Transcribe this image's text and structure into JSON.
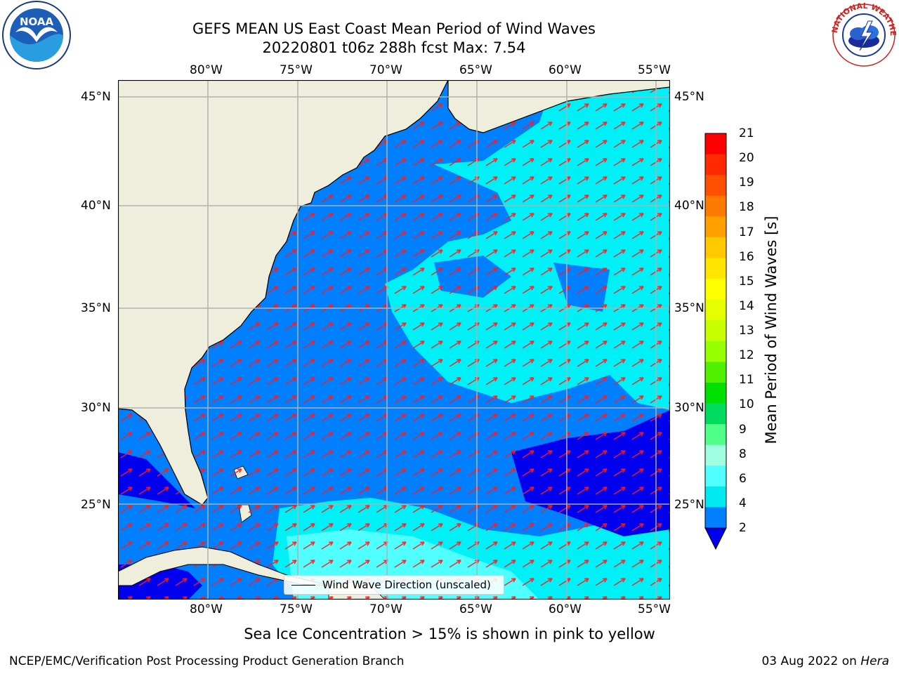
{
  "title": {
    "line1": "GEFS MEAN US East Coast Mean Period of Wind Waves",
    "line2": "20220801 t06z 288h fcst   Max: 7.54"
  },
  "map": {
    "lon_ticks": [
      "80°W",
      "75°W",
      "70°W",
      "65°W",
      "60°W",
      "55°W"
    ],
    "lat_ticks": [
      "45°N",
      "40°N",
      "35°N",
      "30°N",
      "25°N"
    ],
    "legend_label": "Wind Wave Direction (unscaled)",
    "colors": {
      "land": "#efeedc",
      "coast": "#000000",
      "grid": "#b0b0b0",
      "arrow": "#ff1a1a"
    }
  },
  "colorbar": {
    "label": "Mean Period of Wind Waves [s]",
    "ticks": [
      "21",
      "20",
      "19",
      "18",
      "17",
      "16",
      "15",
      "14",
      "13",
      "12",
      "11",
      "10",
      "9",
      "8",
      "6",
      "4",
      "2"
    ],
    "colors": [
      "#ff0000",
      "#ff2a00",
      "#ff5000",
      "#ff7a00",
      "#ffa000",
      "#ffc800",
      "#ffe600",
      "#ffff00",
      "#e6ff00",
      "#c8ff00",
      "#96ff00",
      "#50f000",
      "#00e000",
      "#00dc60",
      "#50ff88",
      "#a0ffe0",
      "#50ffff",
      "#00e8f0",
      "#0080ff",
      "#0000ee"
    ]
  },
  "sea_ice_note": "Sea Ice Concentration > 15% is shown in pink to yellow",
  "footer": {
    "left": "NCEP/EMC/Verification Post Processing Product Generation Branch",
    "right_date": "03 Aug 2022 on ",
    "right_host": "Hera"
  },
  "logos": {
    "noaa": "NOAA",
    "nws": "NATIONAL WEATHER SERVICE"
  }
}
